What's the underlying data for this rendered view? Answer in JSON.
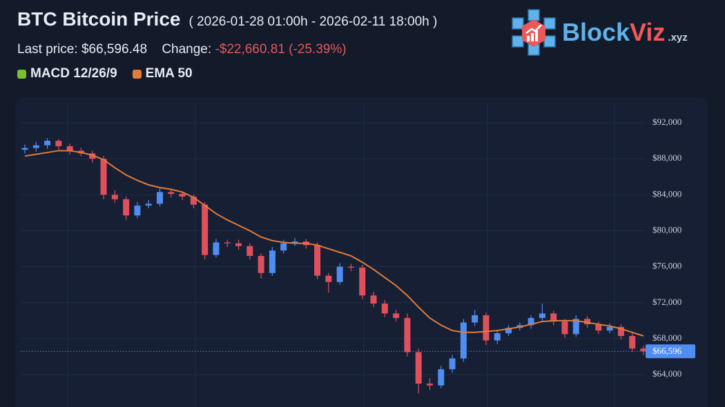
{
  "header": {
    "title": "BTC Bitcoin Price",
    "range": "( 2026-01-28 01:00h - 2026-02-11 18:00h )",
    "last_price_label": "Last price:",
    "last_price": "$66,596.48",
    "change_label": "Change:",
    "change": "-$22,660.81 (-25.39%)"
  },
  "logo": {
    "part1": "Block",
    "part2": "Viz",
    "suffix": ".xyz"
  },
  "chart_data": {
    "type": "candlestick",
    "ylim": [
      60400,
      94150
    ],
    "yticks": [
      {
        "value": 64000,
        "label": "$64,000"
      },
      {
        "value": 68000,
        "label": "$68,000"
      },
      {
        "value": 72000,
        "label": "$72,000"
      },
      {
        "value": 76000,
        "label": "$76,000"
      },
      {
        "value": 80000,
        "label": "$80,000"
      },
      {
        "value": 84000,
        "label": "$84,000"
      },
      {
        "value": 88000,
        "label": "$88,000"
      },
      {
        "value": 92000,
        "label": "$92,000"
      }
    ],
    "grid": true,
    "up_color": "#4f8ef0",
    "down_color": "#e0505c",
    "open": [
      89000,
      89200,
      89500,
      90000,
      89400,
      88900,
      88600,
      88000,
      84000,
      83500,
      81700,
      82800,
      83000,
      84300,
      84100,
      83800,
      82900,
      77300,
      78700,
      78600,
      78300,
      77200,
      75300,
      77800,
      78600,
      78800,
      78400,
      75000,
      74300,
      76000,
      75900,
      72800,
      71900,
      70800,
      70300,
      66500,
      63000,
      62800,
      64600,
      65800,
      69800,
      70600,
      67800,
      68600,
      69200,
      69500,
      70300,
      70800,
      69900,
      68500,
      70200,
      69600,
      68900,
      69300,
      68300,
      66900
    ],
    "high": [
      89600,
      89900,
      90300,
      90200,
      89700,
      89200,
      88900,
      88300,
      84500,
      83800,
      83200,
      83400,
      84700,
      84600,
      84400,
      84000,
      83200,
      79100,
      79000,
      79000,
      78600,
      77500,
      78200,
      79000,
      79200,
      79100,
      78700,
      75300,
      76400,
      76300,
      76200,
      73200,
      72300,
      71200,
      70800,
      66900,
      63600,
      65000,
      66200,
      70200,
      71200,
      70900,
      69000,
      69500,
      69800,
      70600,
      71900,
      71100,
      70200,
      70600,
      70500,
      69900,
      69700,
      69600,
      68600,
      67200
    ],
    "low": [
      88600,
      88800,
      89100,
      89000,
      88500,
      88300,
      87600,
      83500,
      83100,
      81200,
      81400,
      82500,
      82700,
      83700,
      83400,
      82500,
      76800,
      77000,
      78200,
      77900,
      76800,
      74700,
      75000,
      77500,
      78300,
      78000,
      74600,
      73100,
      74000,
      75500,
      72400,
      71500,
      70400,
      69900,
      66000,
      61900,
      62300,
      62500,
      64200,
      65400,
      69400,
      67300,
      67400,
      68300,
      68900,
      69100,
      70000,
      69500,
      68100,
      68200,
      69200,
      68500,
      68600,
      67900,
      66500,
      66200
    ],
    "close": [
      89200,
      89500,
      90000,
      89400,
      88900,
      88600,
      88000,
      84000,
      83500,
      81700,
      82800,
      83000,
      84300,
      84100,
      83800,
      82900,
      77300,
      78700,
      78600,
      78300,
      77200,
      75300,
      77800,
      78600,
      78800,
      78400,
      75000,
      74300,
      76000,
      75900,
      72800,
      71900,
      70800,
      70300,
      66500,
      63000,
      62800,
      64600,
      65800,
      69800,
      70600,
      67800,
      68600,
      69200,
      69500,
      70300,
      70800,
      69900,
      68500,
      70200,
      69600,
      68900,
      69300,
      68300,
      66900,
      66596
    ],
    "indicators": [
      {
        "name": "MACD 12/26/9",
        "color": "#78c02e"
      }
    ],
    "ema": {
      "name": "EMA 50",
      "color": "#e27c3a",
      "values": [
        88300,
        88500,
        88700,
        88900,
        88900,
        88700,
        88400,
        87900,
        87000,
        86200,
        85600,
        85100,
        84800,
        84600,
        84300,
        83700,
        82800,
        81900,
        81200,
        80600,
        80000,
        79300,
        78900,
        78700,
        78600,
        78600,
        78400,
        78000,
        77600,
        77200,
        76500,
        75700,
        74800,
        73900,
        72800,
        71500,
        70300,
        69500,
        68900,
        68700,
        68700,
        68800,
        68900,
        69100,
        69300,
        69600,
        69900,
        70000,
        70000,
        70000,
        69800,
        69600,
        69400,
        69100,
        68700,
        68300
      ]
    },
    "last_price": {
      "value": 66596,
      "label": "$66,596"
    }
  }
}
